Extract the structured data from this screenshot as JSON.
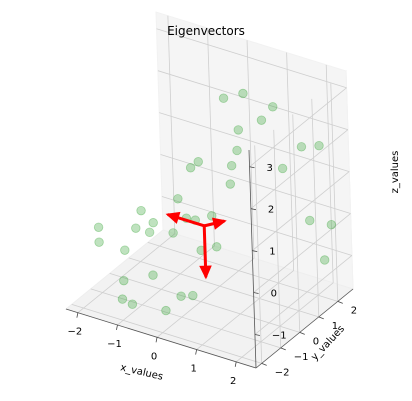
{
  "chart_data": {
    "type": "scatter3d",
    "title": "Eigenvectors",
    "xlabel": "x_values",
    "ylabel": "y_values",
    "zlabel": "z_values",
    "x_ticks": [
      -2,
      -1,
      0,
      1,
      2
    ],
    "y_ticks": [
      -2,
      -1,
      0,
      1,
      2
    ],
    "z_ticks": [
      -1,
      0,
      1,
      2,
      3
    ],
    "xlim": [
      -2.3,
      2.5
    ],
    "ylim": [
      -2.3,
      2.8
    ],
    "zlim": [
      -1.8,
      3.4
    ],
    "grid": true,
    "point_color": "#2ca02c",
    "vector_color": "#ff0000",
    "points": [
      {
        "x": 1.8,
        "y": 2.7,
        "z": 1.45
      },
      {
        "x": 1.5,
        "y": 1.4,
        "z": 1.3
      },
      {
        "x": 1.6,
        "y": 2.2,
        "z": 1.55
      },
      {
        "x": 0.25,
        "y": 2.0,
        "z": 2.5
      },
      {
        "x": 0.05,
        "y": 1.4,
        "z": 2.55
      },
      {
        "x": 0.95,
        "y": 2.1,
        "z": 2.35
      },
      {
        "x": 0.85,
        "y": 1.7,
        "z": 2.15
      },
      {
        "x": 0.5,
        "y": 1.2,
        "z": 2.0
      },
      {
        "x": 0.6,
        "y": 0.9,
        "z": 1.65
      },
      {
        "x": 0.7,
        "y": 0.4,
        "z": 1.5
      },
      {
        "x": 0.0,
        "y": 0.1,
        "z": 1.5
      },
      {
        "x": -0.15,
        "y": 0.0,
        "z": 1.35
      },
      {
        "x": 0.7,
        "y": 0.3,
        "z": 1.1
      },
      {
        "x": 0.4,
        "y": -0.1,
        "z": 0.4
      },
      {
        "x": 0.0,
        "y": -0.15,
        "z": 0.2
      },
      {
        "x": 0.4,
        "y": -0.7,
        "z": -0.2
      },
      {
        "x": 0.8,
        "y": -0.7,
        "z": 0.0
      },
      {
        "x": 2.2,
        "y": 1.3,
        "z": 0.3
      },
      {
        "x": 2.4,
        "y": 2.0,
        "z": 0.0
      },
      {
        "x": 2.2,
        "y": 2.0,
        "z": -0.9
      },
      {
        "x": -0.7,
        "y": 0.4,
        "z": 0.3
      },
      {
        "x": -0.4,
        "y": 0.2,
        "z": 0.0
      },
      {
        "x": -0.6,
        "y": -0.1,
        "z": -0.3
      },
      {
        "x": -1.0,
        "y": -0.3,
        "z": -0.1
      },
      {
        "x": -1.3,
        "y": -0.3,
        "z": 0.1
      },
      {
        "x": -0.85,
        "y": -0.8,
        "z": -0.1
      },
      {
        "x": -1.1,
        "y": -1.0,
        "z": 0.0
      },
      {
        "x": -1.0,
        "y": -1.8,
        "z": -0.2
      },
      {
        "x": -1.8,
        "y": -1.5,
        "z": 0.0
      },
      {
        "x": -1.65,
        "y": -1.8,
        "z": -0.2
      },
      {
        "x": -0.6,
        "y": -1.2,
        "z": -0.9
      },
      {
        "x": 0.0,
        "y": -1.0,
        "z": -1.3
      },
      {
        "x": 0.2,
        "y": -0.8,
        "z": -1.3
      },
      {
        "x": -1.3,
        "y": -1.3,
        "z": -1.2
      },
      {
        "x": -1.0,
        "y": -1.5,
        "z": -1.6
      },
      {
        "x": -1.2,
        "y": -1.6,
        "z": -1.5
      },
      {
        "x": -0.05,
        "y": -1.7,
        "z": -1.4
      }
    ],
    "vectors": [
      {
        "dx": -0.9,
        "dy": 0.0,
        "dz": 0.0
      },
      {
        "dx": 0.0,
        "dy": 0.0,
        "dz": -1.2
      },
      {
        "dx": 0.3,
        "dy": 0.4,
        "dz": 0.05
      }
    ],
    "origin": {
      "x": 0.1,
      "y": 0.1,
      "z": 0.0
    }
  }
}
